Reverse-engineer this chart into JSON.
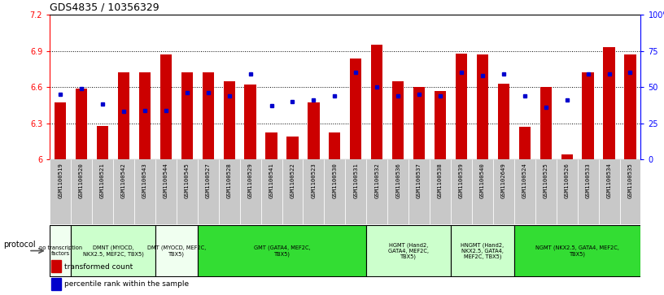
{
  "title": "GDS4835 / 10356329",
  "ylim_left": [
    6.0,
    7.2
  ],
  "ylim_right": [
    0,
    100
  ],
  "yticks_left": [
    6.0,
    6.3,
    6.6,
    6.9,
    7.2
  ],
  "yticks_right": [
    0,
    25,
    50,
    75,
    100
  ],
  "ytick_labels_left": [
    "6",
    "6.3",
    "6.6",
    "6.9",
    "7.2"
  ],
  "ytick_labels_right": [
    "0",
    "25",
    "50",
    "75",
    "100%"
  ],
  "samples": [
    "GSM1100519",
    "GSM1100520",
    "GSM1100521",
    "GSM1100542",
    "GSM1100543",
    "GSM1100544",
    "GSM1100545",
    "GSM1100527",
    "GSM1100528",
    "GSM1100529",
    "GSM1100541",
    "GSM1100522",
    "GSM1100523",
    "GSM1100530",
    "GSM1100531",
    "GSM1100532",
    "GSM1100536",
    "GSM1100537",
    "GSM1100538",
    "GSM1100539",
    "GSM1100540",
    "GSM1102649",
    "GSM1100524",
    "GSM1100525",
    "GSM1100526",
    "GSM1100533",
    "GSM1100534",
    "GSM1100535"
  ],
  "bar_values": [
    6.47,
    6.59,
    6.28,
    6.72,
    6.72,
    6.87,
    6.72,
    6.72,
    6.65,
    6.62,
    6.22,
    6.19,
    6.47,
    6.22,
    6.84,
    6.95,
    6.65,
    6.6,
    6.57,
    6.88,
    6.87,
    6.63,
    6.27,
    6.6,
    6.04,
    6.72,
    6.93,
    6.87
  ],
  "dot_values": [
    45,
    49,
    38,
    33,
    34,
    34,
    46,
    46,
    44,
    59,
    37,
    40,
    41,
    44,
    60,
    50,
    44,
    45,
    44,
    60,
    58,
    59,
    44,
    36,
    41,
    59,
    59,
    60
  ],
  "bar_color": "#cc0000",
  "dot_color": "#0000cc",
  "protocols": [
    {
      "label": "no transcription\nfactors",
      "start": 0,
      "end": 1,
      "color": "#f0fff0"
    },
    {
      "label": "DMNT (MYOCD,\nNKX2.5, MEF2C, TBX5)",
      "start": 1,
      "end": 5,
      "color": "#ccffcc"
    },
    {
      "label": "DMT (MYOCD, MEF2C,\nTBX5)",
      "start": 5,
      "end": 7,
      "color": "#f0fff0"
    },
    {
      "label": "GMT (GATA4, MEF2C,\nTBX5)",
      "start": 7,
      "end": 15,
      "color": "#33dd33"
    },
    {
      "label": "HGMT (Hand2,\nGATA4, MEF2C,\nTBX5)",
      "start": 15,
      "end": 19,
      "color": "#ccffcc"
    },
    {
      "label": "HNGMT (Hand2,\nNKX2.5, GATA4,\nMEF2C, TBX5)",
      "start": 19,
      "end": 22,
      "color": "#ccffcc"
    },
    {
      "label": "NGMT (NKX2.5, GATA4, MEF2C,\nTBX5)",
      "start": 22,
      "end": 28,
      "color": "#33dd33"
    }
  ],
  "legend_items": [
    {
      "label": "transformed count",
      "color": "#cc0000"
    },
    {
      "label": "percentile rank within the sample",
      "color": "#0000cc"
    }
  ],
  "protocol_label": "protocol",
  "tick_bg_color": "#c8c8c8"
}
